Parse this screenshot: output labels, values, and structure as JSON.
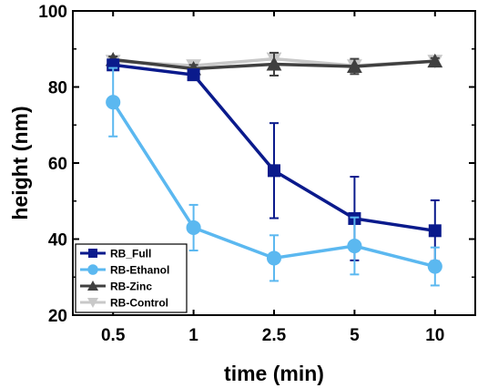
{
  "chart_data": {
    "type": "line",
    "xlabel": "time (min)",
    "ylabel": "height (nm)",
    "categories": [
      "0.5",
      "1",
      "2.5",
      "5",
      "10"
    ],
    "ylim": [
      20,
      100
    ],
    "yticks": [
      20,
      40,
      60,
      80,
      100
    ],
    "grid": false,
    "legend": "bottom-left",
    "series": [
      {
        "name": "RB-Control",
        "color": "#c8c8c8",
        "marker": "triangle-down",
        "values": [
          86.8,
          85.6,
          87.4,
          85.6,
          86.8
        ],
        "errors": [
          0.8,
          1.2,
          1.5,
          1.5,
          0.6
        ]
      },
      {
        "name": "RB-Zinc",
        "color": "#404040",
        "marker": "triangle-up",
        "values": [
          87.2,
          84.8,
          86.0,
          85.4,
          86.8
        ],
        "errors": [
          0.8,
          1.0,
          3.0,
          2.0,
          0.8
        ]
      },
      {
        "name": "RB_Full",
        "color": "#0a1a8c",
        "marker": "square",
        "values": [
          85.8,
          83.2,
          58.0,
          45.4,
          42.2
        ],
        "errors": [
          1.0,
          1.0,
          12.5,
          11.0,
          8.0
        ]
      },
      {
        "name": "RB-Ethanol",
        "color": "#5bb8f0",
        "marker": "circle",
        "values": [
          76.0,
          43.0,
          35.0,
          38.2,
          32.8
        ],
        "errors": [
          9.0,
          6.0,
          6.0,
          7.5,
          5.0
        ]
      }
    ]
  }
}
